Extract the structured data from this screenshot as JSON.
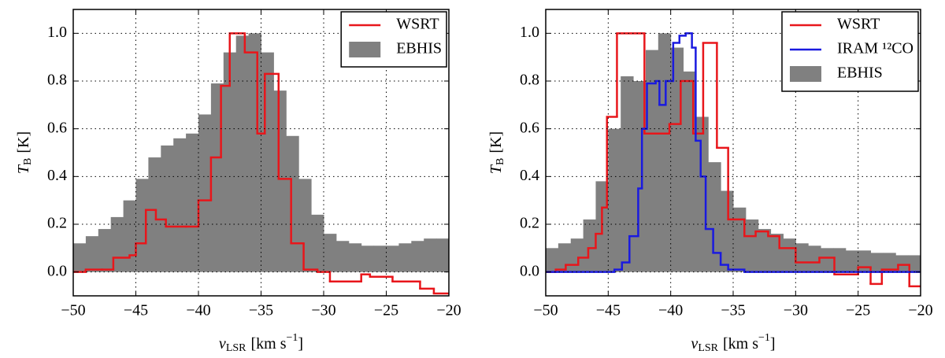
{
  "chart_data": [
    {
      "type": "step-histogram",
      "xlabel": {
        "symbol": "v",
        "sub": "LSR",
        "unit": "[km s",
        "sup": "−1",
        "close": "]"
      },
      "ylabel": {
        "symbol": "T",
        "sub": "B",
        "unit": "[K]"
      },
      "xlim": [
        -50,
        -20
      ],
      "ylim": [
        -0.1,
        1.1
      ],
      "xticks": [
        {
          "value": -50,
          "label": "−50"
        },
        {
          "value": -45,
          "label": "−45"
        },
        {
          "value": -40,
          "label": "−40"
        },
        {
          "value": -35,
          "label": "−35"
        },
        {
          "value": -30,
          "label": "−30"
        },
        {
          "value": -25,
          "label": "−25"
        },
        {
          "value": -20,
          "label": "−20"
        }
      ],
      "yticks": [
        {
          "value": 0,
          "label": "0.0"
        },
        0.2,
        0.4,
        0.6,
        0.8,
        {
          "value": 1,
          "label": "1.0"
        }
      ],
      "grid": true,
      "legend": "upper right",
      "lines": [
        {
          "name": "WSRT",
          "color": "#e8161b",
          "x": [
            -50,
            -49,
            -47.7,
            -46.8,
            -45.5,
            -45,
            -44.2,
            -43.4,
            -42.6,
            -41,
            -40,
            -39,
            -38.2,
            -37.5,
            -36.3,
            -35.3,
            -34.7,
            -33.6,
            -32.6,
            -31.6,
            -30.5,
            -29.5,
            -27,
            -26.3,
            -24.5,
            -22.3,
            -21.2
          ],
          "values": [
            0.0,
            0.01,
            0.01,
            0.06,
            0.07,
            0.12,
            0.26,
            0.22,
            0.19,
            0.19,
            0.3,
            0.48,
            0.78,
            1.0,
            0.92,
            0.58,
            0.83,
            0.39,
            0.12,
            0.01,
            0.0,
            -0.04,
            -0.01,
            -0.02,
            -0.04,
            -0.07,
            -0.09
          ]
        }
      ],
      "histogram": {
        "name": "EBHIS",
        "color": "#808080",
        "bins": [
          -50,
          -49,
          -48,
          -47,
          -46,
          -45,
          -44,
          -43,
          -42,
          -41,
          -40,
          -39,
          -38,
          -37,
          -36,
          -35,
          -34,
          -33,
          -32,
          -31,
          -30,
          -29,
          -28,
          -27,
          -26,
          -25,
          -24,
          -23,
          -22,
          -21,
          -20
        ],
        "values": [
          0.12,
          0.15,
          0.18,
          0.23,
          0.3,
          0.39,
          0.48,
          0.53,
          0.56,
          0.58,
          0.66,
          0.79,
          0.92,
          0.99,
          1.0,
          0.92,
          0.76,
          0.57,
          0.39,
          0.24,
          0.16,
          0.13,
          0.12,
          0.11,
          0.11,
          0.11,
          0.12,
          0.13,
          0.14,
          0.14
        ]
      }
    },
    {
      "type": "step-histogram",
      "xlabel": {
        "symbol": "v",
        "sub": "LSR",
        "unit": "[km s",
        "sup": "−1",
        "close": "]"
      },
      "ylabel": {
        "symbol": "T",
        "sub": "B",
        "unit": "[K]"
      },
      "xlim": [
        -50,
        -20
      ],
      "ylim": [
        -0.1,
        1.1
      ],
      "xticks": [
        {
          "value": -50,
          "label": "−50"
        },
        {
          "value": -45,
          "label": "−45"
        },
        {
          "value": -40,
          "label": "−40"
        },
        {
          "value": -35,
          "label": "−35"
        },
        {
          "value": -30,
          "label": "−30"
        },
        {
          "value": -25,
          "label": "−25"
        },
        {
          "value": -20,
          "label": "−20"
        }
      ],
      "yticks": [
        {
          "value": 0,
          "label": "0.0"
        },
        0.2,
        0.4,
        0.6,
        0.8,
        {
          "value": 1,
          "label": "1.0"
        }
      ],
      "grid": true,
      "legend": "upper right",
      "lines": [
        {
          "name": "WSRT",
          "color": "#e8161b",
          "x": [
            -50,
            -49.2,
            -48.4,
            -47.4,
            -46.6,
            -46,
            -45.5,
            -45.1,
            -44.3,
            -42.1,
            -40.1,
            -39.2,
            -38.2,
            -37.4,
            -36.3,
            -35.4,
            -34.1,
            -33.2,
            -32.2,
            -31.3,
            -30,
            -28.1,
            -26.9,
            -25.9,
            -25,
            -24,
            -23.1,
            -21.8,
            -20.9
          ],
          "values": [
            0.0,
            0.01,
            0.03,
            0.06,
            0.1,
            0.16,
            0.27,
            0.65,
            1.0,
            0.58,
            0.62,
            0.8,
            0.58,
            0.96,
            0.52,
            0.22,
            0.15,
            0.17,
            0.15,
            0.1,
            0.04,
            0.06,
            -0.01,
            -0.01,
            0.02,
            -0.05,
            0.01,
            0.03,
            -0.06
          ]
        },
        {
          "name": "IRAM ¹²CO",
          "color": "#1a1adf",
          "x": [
            -50,
            -44.5,
            -43.9,
            -43.3,
            -42.6,
            -42.3,
            -41.9,
            -41.2,
            -40.9,
            -40.4,
            -39.8,
            -39.3,
            -38.8,
            -38.3,
            -38.0,
            -37.6,
            -37.2,
            -36.6,
            -36.0,
            -35.4,
            -34.1
          ],
          "values": [
            0.0,
            0.01,
            0.04,
            0.15,
            0.35,
            0.6,
            0.79,
            0.8,
            0.7,
            0.8,
            0.96,
            0.99,
            1.0,
            0.94,
            0.55,
            0.4,
            0.18,
            0.08,
            0.03,
            0.01,
            0.0
          ]
        }
      ],
      "histogram": {
        "name": "EBHIS",
        "color": "#808080",
        "bins": [
          -50,
          -49,
          -48,
          -47,
          -46,
          -45,
          -44,
          -43,
          -42,
          -41,
          -40,
          -39,
          -38,
          -37,
          -36,
          -35,
          -34,
          -33,
          -32,
          -31,
          -30,
          -29,
          -28,
          -27,
          -26,
          -25,
          -24,
          -23,
          -22,
          -21,
          -20
        ],
        "values": [
          0.1,
          0.12,
          0.14,
          0.22,
          0.38,
          0.6,
          0.82,
          0.8,
          0.93,
          1.0,
          0.94,
          0.84,
          0.65,
          0.46,
          0.34,
          0.27,
          0.22,
          0.18,
          0.16,
          0.14,
          0.12,
          0.11,
          0.1,
          0.1,
          0.09,
          0.09,
          0.08,
          0.08,
          0.07,
          0.07
        ]
      }
    }
  ]
}
